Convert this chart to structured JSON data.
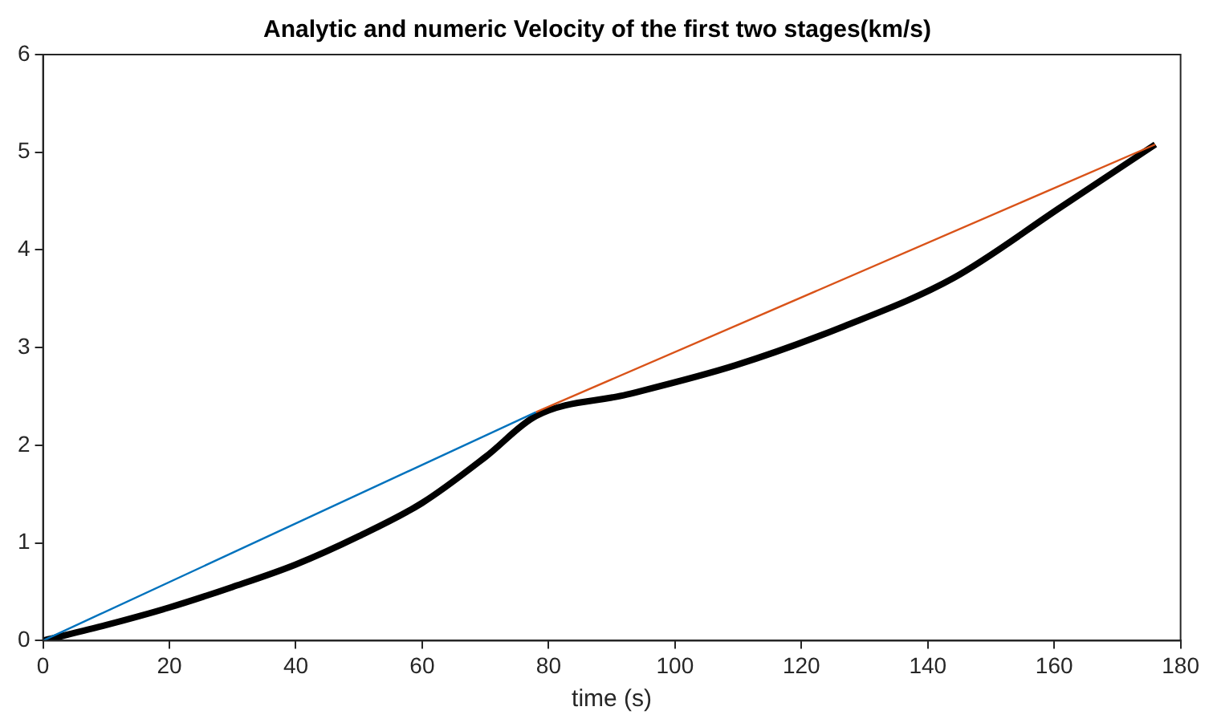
{
  "chart_data": {
    "type": "line",
    "title": "Analytic and numeric Velocity of the first two stages(km/s)",
    "xlabel": "time (s)",
    "xlim": [
      0,
      180
    ],
    "xticks": [
      0,
      20,
      40,
      60,
      80,
      100,
      120,
      140,
      160,
      180
    ],
    "ylim": [
      0,
      6
    ],
    "yticks": [
      0,
      1,
      2,
      3,
      4,
      5,
      6
    ],
    "grid": false,
    "legend": false,
    "marker": "none",
    "line_style": "solid",
    "series": [
      {
        "color": "#0072bd",
        "x": [
          0,
          78
        ],
        "values": [
          0,
          2.34
        ]
      },
      {
        "color": "#d95319",
        "x": [
          78,
          176
        ],
        "values": [
          2.34,
          5.08
        ]
      },
      {
        "color": "#000000",
        "x": [
          0,
          10,
          20,
          30,
          40,
          50,
          60,
          70,
          78,
          92.4,
          109.6,
          126.8,
          144,
          161.1,
          176
        ],
        "values": [
          0,
          0.16,
          0.34,
          0.55,
          0.78,
          1.07,
          1.41,
          1.88,
          2.3,
          2.52,
          2.82,
          3.22,
          3.71,
          4.44,
          5.08
        ]
      }
    ]
  }
}
